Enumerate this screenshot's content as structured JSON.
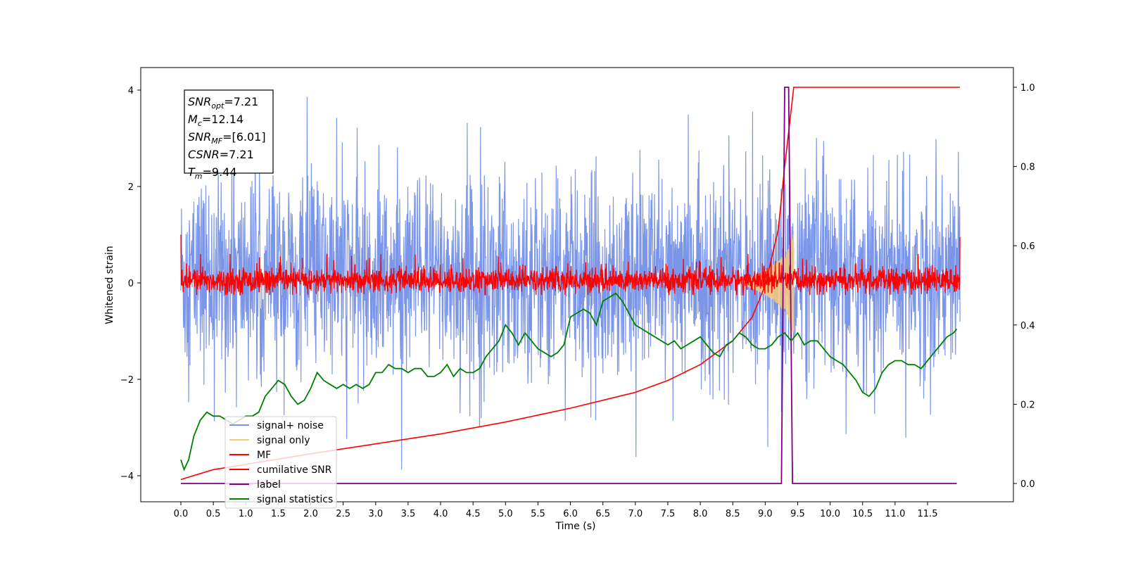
{
  "chart_data": {
    "type": "line",
    "xlabel": "Time (s)",
    "ylabel": "Whitened strain",
    "xlim": [
      -0.6,
      12.5
    ],
    "ylim": [
      -4.6,
      4.5
    ],
    "ylim_right": [
      -0.05,
      1.04
    ],
    "x_ticks": [
      "0.0",
      "0.5",
      "1.0",
      "1.5",
      "2.0",
      "2.5",
      "3.0",
      "3.5",
      "4.0",
      "4.5",
      "5.0",
      "5.5",
      "6.0",
      "6.5",
      "7.0",
      "7.5",
      "8.0",
      "8.5",
      "9.0",
      "9.5",
      "10.0",
      "10.5",
      "11.0",
      "11.5"
    ],
    "y_ticks_left": [
      "−4",
      "−2",
      "0",
      "2",
      "4"
    ],
    "y_ticks_right": [
      "0.0",
      "0.2",
      "0.4",
      "0.6",
      "0.8",
      "1.0"
    ],
    "legend_position": "lower-left",
    "series": [
      {
        "name": "signal+ noise",
        "color": "#7b95e8",
        "axis": "left",
        "noise_band": {
          "low": -2.0,
          "high": 2.3,
          "min_spike": -4.15,
          "max_spike": 4.05
        },
        "x_range": [
          0.0,
          12.0
        ]
      },
      {
        "name": "signal only",
        "color": "#f5c97a",
        "axis": "left",
        "x": [
          8.7,
          9.0,
          9.2,
          9.35,
          9.44,
          9.45
        ],
        "amplitude": [
          0.05,
          0.25,
          0.45,
          0.7,
          1.1,
          0.0
        ]
      },
      {
        "name": "MF",
        "color": "#ff0000",
        "axis": "left",
        "noise_band": {
          "low": -0.25,
          "high": 0.35,
          "max_spike": 0.6
        },
        "x_range": [
          0.0,
          12.0
        ],
        "start": 1.0,
        "end": 0.95
      },
      {
        "name": "cumilative SNR",
        "color": "#ff0000",
        "axis": "right",
        "x": [
          0.0,
          0.5,
          1.0,
          2.0,
          3.0,
          4.0,
          5.0,
          6.0,
          7.0,
          7.5,
          8.0,
          8.5,
          8.8,
          9.0,
          9.2,
          9.3,
          9.44,
          9.5,
          12.0
        ],
        "y": [
          0.01,
          0.035,
          0.048,
          0.075,
          0.1,
          0.125,
          0.155,
          0.19,
          0.23,
          0.26,
          0.3,
          0.36,
          0.42,
          0.5,
          0.64,
          0.8,
          1.0,
          1.0,
          1.0
        ]
      },
      {
        "name": "label",
        "color": "#800080",
        "axis": "right",
        "x": [
          0.0,
          9.25,
          9.3,
          9.36,
          9.42,
          11.95
        ],
        "y": [
          0.0,
          0.0,
          1.0,
          1.0,
          0.0,
          0.0
        ]
      },
      {
        "name": "signal statistics",
        "color": "#008000",
        "axis": "right",
        "x": [
          0.0,
          0.05,
          0.12,
          0.2,
          0.3,
          0.4,
          0.5,
          0.6,
          0.7,
          0.8,
          0.9,
          1.0,
          1.1,
          1.2,
          1.3,
          1.4,
          1.5,
          1.6,
          1.7,
          1.8,
          1.9,
          2.0,
          2.1,
          2.2,
          2.3,
          2.4,
          2.5,
          2.6,
          2.7,
          2.8,
          2.9,
          3.0,
          3.1,
          3.2,
          3.3,
          3.4,
          3.5,
          3.6,
          3.7,
          3.8,
          3.9,
          4.0,
          4.1,
          4.2,
          4.3,
          4.4,
          4.5,
          4.6,
          4.7,
          4.8,
          4.9,
          5.0,
          5.1,
          5.2,
          5.3,
          5.4,
          5.5,
          5.6,
          5.7,
          5.8,
          5.9,
          6.0,
          6.1,
          6.2,
          6.3,
          6.4,
          6.5,
          6.6,
          6.7,
          6.8,
          6.9,
          7.0,
          7.1,
          7.2,
          7.3,
          7.4,
          7.5,
          7.6,
          7.7,
          7.8,
          7.9,
          8.0,
          8.1,
          8.2,
          8.3,
          8.4,
          8.5,
          8.6,
          8.7,
          8.8,
          8.9,
          9.0,
          9.1,
          9.2,
          9.3,
          9.4,
          9.5,
          9.6,
          9.7,
          9.8,
          9.9,
          10.0,
          10.1,
          10.2,
          10.3,
          10.4,
          10.5,
          10.6,
          10.7,
          10.8,
          10.9,
          11.0,
          11.1,
          11.2,
          11.3,
          11.4,
          11.5,
          11.6,
          11.7,
          11.8,
          11.9,
          11.95
        ],
        "y": [
          0.06,
          0.035,
          0.06,
          0.12,
          0.16,
          0.18,
          0.17,
          0.17,
          0.16,
          0.15,
          0.16,
          0.17,
          0.17,
          0.18,
          0.22,
          0.24,
          0.26,
          0.25,
          0.22,
          0.2,
          0.21,
          0.24,
          0.28,
          0.26,
          0.25,
          0.24,
          0.25,
          0.24,
          0.25,
          0.24,
          0.25,
          0.28,
          0.28,
          0.3,
          0.29,
          0.29,
          0.28,
          0.29,
          0.29,
          0.27,
          0.27,
          0.28,
          0.3,
          0.27,
          0.29,
          0.28,
          0.28,
          0.29,
          0.32,
          0.34,
          0.36,
          0.4,
          0.38,
          0.35,
          0.38,
          0.36,
          0.34,
          0.33,
          0.32,
          0.33,
          0.35,
          0.42,
          0.43,
          0.44,
          0.43,
          0.4,
          0.46,
          0.47,
          0.48,
          0.46,
          0.43,
          0.4,
          0.39,
          0.38,
          0.37,
          0.36,
          0.35,
          0.36,
          0.34,
          0.35,
          0.36,
          0.37,
          0.35,
          0.33,
          0.32,
          0.35,
          0.36,
          0.38,
          0.37,
          0.35,
          0.34,
          0.34,
          0.35,
          0.37,
          0.38,
          0.36,
          0.38,
          0.35,
          0.36,
          0.36,
          0.34,
          0.32,
          0.31,
          0.3,
          0.28,
          0.26,
          0.23,
          0.22,
          0.24,
          0.28,
          0.3,
          0.31,
          0.31,
          0.3,
          0.3,
          0.29,
          0.31,
          0.33,
          0.35,
          0.37,
          0.38,
          0.39
        ]
      }
    ],
    "annotation": [
      {
        "symbol": "SNR",
        "sub": "opt",
        "value": "=7.21"
      },
      {
        "symbol": "M",
        "sub": "c",
        "value": "=12.14"
      },
      {
        "symbol": "SNR",
        "sub": "MF",
        "value": "=[6.01]"
      },
      {
        "symbol": "CSNR",
        "sub": "",
        "value": "=7.21"
      },
      {
        "symbol": "T",
        "sub": "m",
        "value": "=9.44"
      }
    ]
  }
}
